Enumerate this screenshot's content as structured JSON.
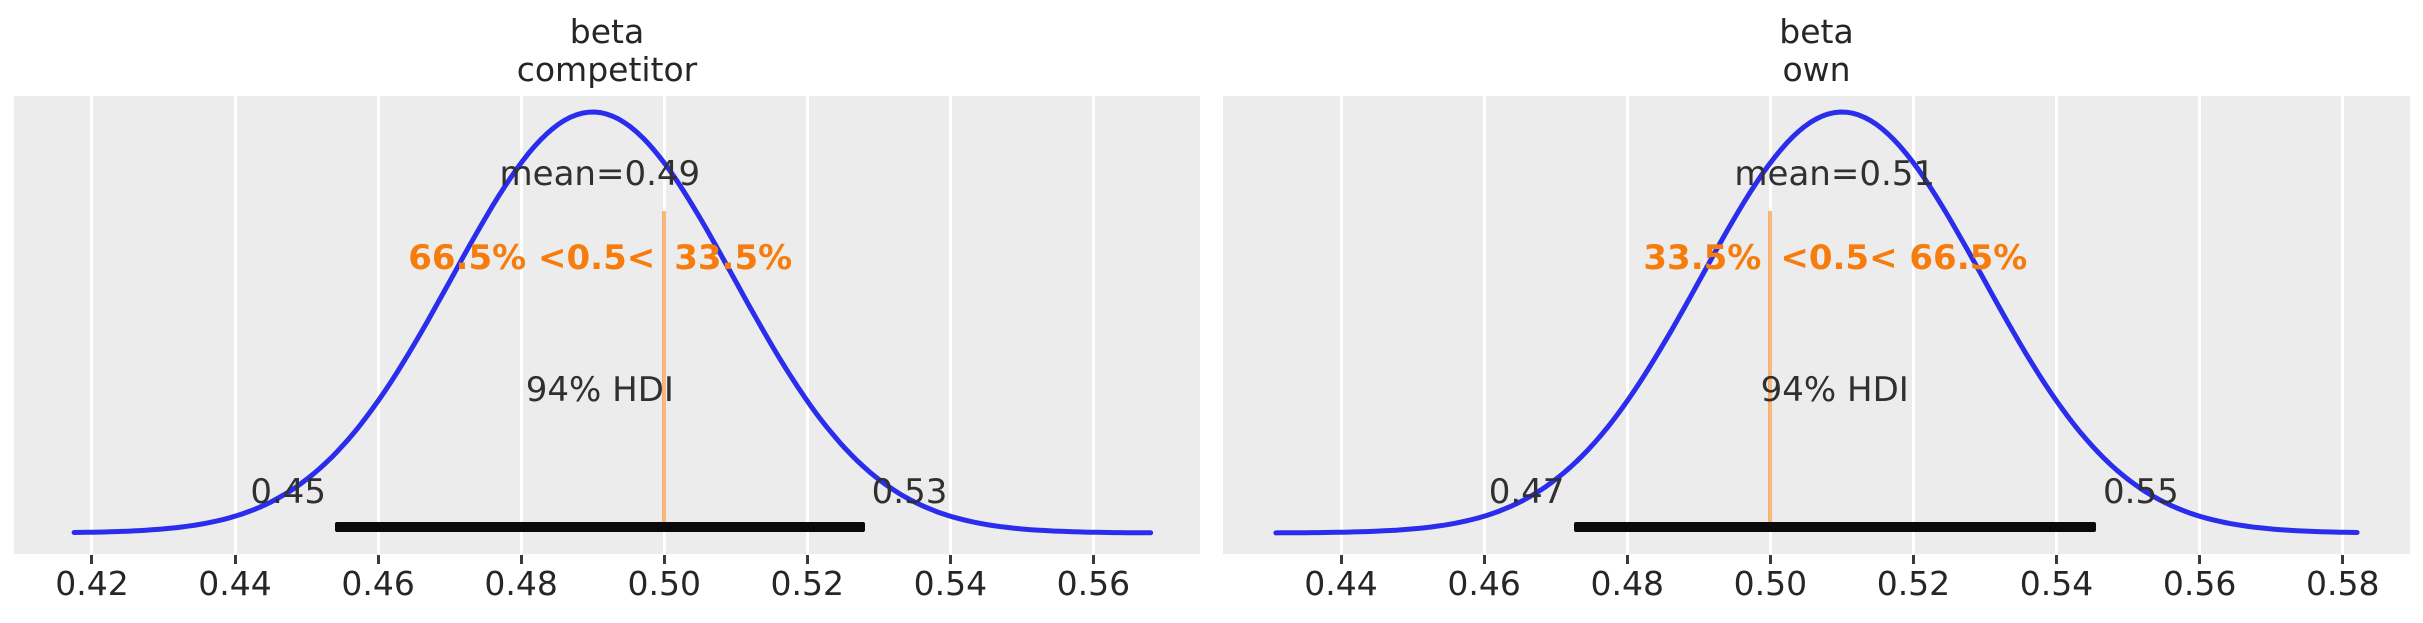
{
  "figure": {
    "kind": "posterior density comparison, 2 subplots"
  },
  "colors": {
    "background": "#ffffff",
    "axes_background": "#ececec",
    "gridline": "#ffffff",
    "curve": "#2a2eec",
    "ref_accent": "#f67d0d",
    "hdi_bar": "#0a0a0a",
    "text": "#262626"
  },
  "chart_data": [
    {
      "type": "area",
      "title": "beta competitor",
      "title_lines": [
        "beta",
        "competitor"
      ],
      "mean": 0.49,
      "mean_label": "mean=0.49",
      "sd": 0.0197,
      "ref_value": 0.5,
      "pct_below_ref": 66.5,
      "pct_above_ref": 33.5,
      "ref_label_parts": [
        "66.5% <0.5<",
        "33.5%"
      ],
      "ref_label_full": "66.5% <0.5< 33.5%",
      "hdi_label": "94% HDI",
      "hdi": [
        0.45,
        0.53
      ],
      "hdi_precise": [
        0.454,
        0.528
      ],
      "hdi_low_label": "0.45",
      "hdi_high_label": "0.53",
      "x_ticks": [
        0.42,
        0.44,
        0.46,
        0.48,
        0.5,
        0.52,
        0.54,
        0.56
      ],
      "xlim": [
        0.4091,
        0.5749
      ],
      "curve_range": [
        0.4175,
        0.568
      ],
      "grid": true,
      "legend": false,
      "ylabel": "",
      "xlabel": ""
    },
    {
      "type": "area",
      "title": "beta own",
      "title_lines": [
        "beta",
        "own"
      ],
      "mean": 0.51,
      "mean_label": "mean=0.51",
      "sd": 0.0197,
      "ref_value": 0.5,
      "pct_below_ref": 33.5,
      "pct_above_ref": 66.5,
      "ref_label_parts": [
        "33.5%",
        "<0.5< 66.5%"
      ],
      "ref_label_full": "33.5% <0.5< 66.5%",
      "hdi_label": "94% HDI",
      "hdi": [
        0.47,
        0.55
      ],
      "hdi_precise": [
        0.4725,
        0.5455
      ],
      "hdi_low_label": "0.47",
      "hdi_high_label": "0.55",
      "x_ticks": [
        0.44,
        0.46,
        0.48,
        0.5,
        0.52,
        0.54,
        0.56,
        0.58
      ],
      "xlim": [
        0.4235,
        0.5894
      ],
      "curve_range": [
        0.4309,
        0.582
      ],
      "grid": true,
      "legend": false,
      "ylabel": "",
      "xlabel": ""
    }
  ]
}
